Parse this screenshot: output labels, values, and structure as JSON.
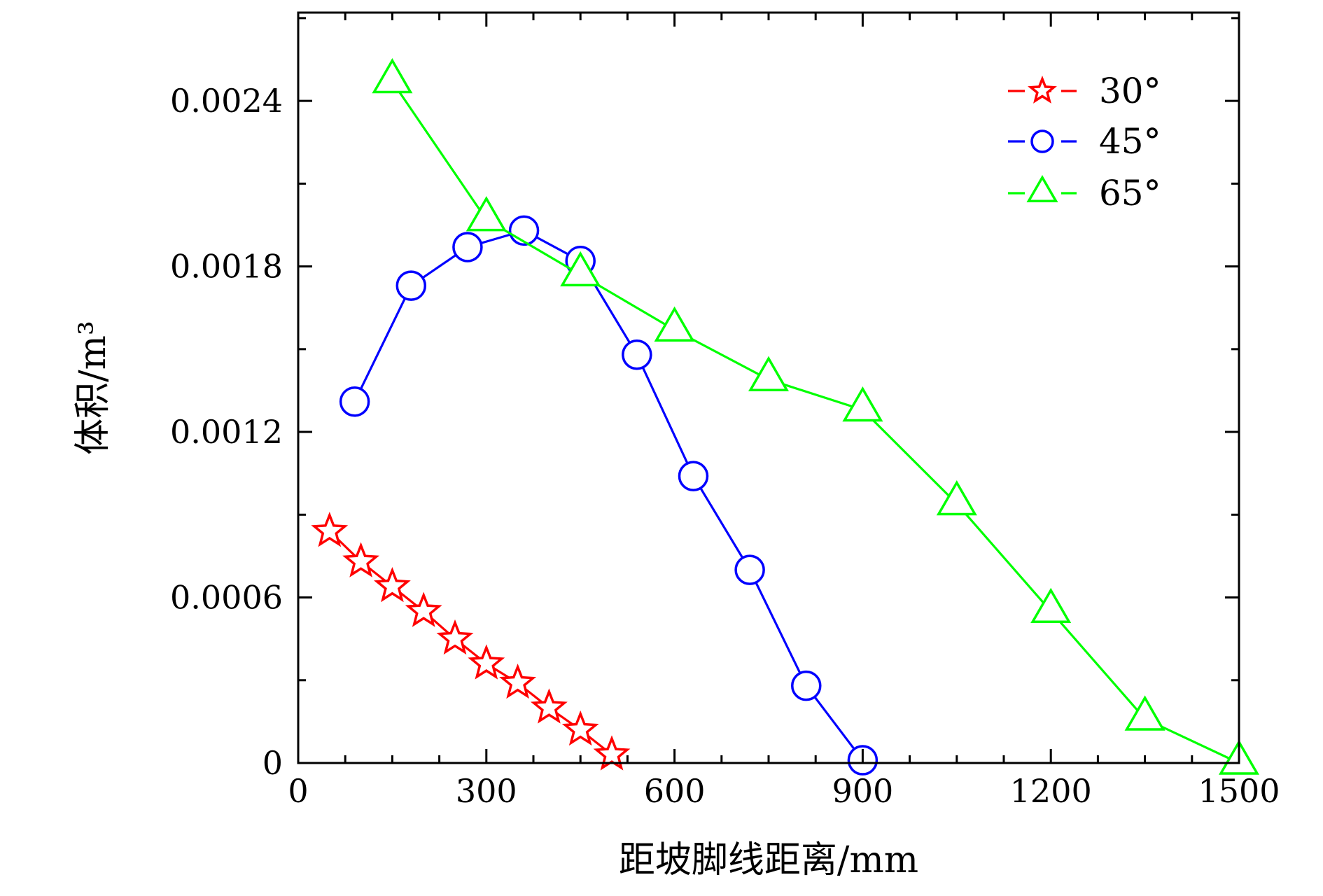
{
  "chart_data": {
    "type": "line",
    "xlabel": "距坡脚线距离/mm",
    "ylabel": "体积/m³",
    "xlim": [
      0,
      1500
    ],
    "ylim": [
      0,
      0.00272
    ],
    "xticks": [
      0,
      300,
      600,
      900,
      1200,
      1500
    ],
    "xtick_labels": [
      "0",
      "300",
      "600",
      "900",
      "1200",
      "1500"
    ],
    "yticks": [
      0,
      0.0006,
      0.0012,
      0.0018,
      0.0024
    ],
    "ytick_labels": [
      "0",
      "0.0006",
      "0.0012",
      "0.0018",
      "0.0024"
    ],
    "grid": false,
    "legend_position": "top-right",
    "series": [
      {
        "name": "30°",
        "color": "#ff0000",
        "marker": "star",
        "x": [
          50,
          100,
          150,
          200,
          250,
          300,
          350,
          400,
          450,
          500
        ],
        "y": [
          0.00084,
          0.00073,
          0.00064,
          0.00055,
          0.00045,
          0.00036,
          0.00029,
          0.0002,
          0.00012,
          3e-05
        ]
      },
      {
        "name": "45°",
        "color": "#0000ff",
        "marker": "circle",
        "x": [
          90,
          180,
          270,
          360,
          450,
          540,
          630,
          720,
          810,
          900
        ],
        "y": [
          0.00131,
          0.00173,
          0.00187,
          0.00193,
          0.00182,
          0.00148,
          0.00104,
          0.0007,
          0.00028,
          1e-05
        ]
      },
      {
        "name": "65°",
        "color": "#00ff00",
        "marker": "triangle",
        "x": [
          150,
          300,
          450,
          600,
          750,
          900,
          1050,
          1200,
          1350,
          1500
        ],
        "y": [
          0.00247,
          0.00197,
          0.00177,
          0.00157,
          0.00139,
          0.00128,
          0.00094,
          0.00055,
          0.00016,
          0.0
        ]
      }
    ]
  }
}
